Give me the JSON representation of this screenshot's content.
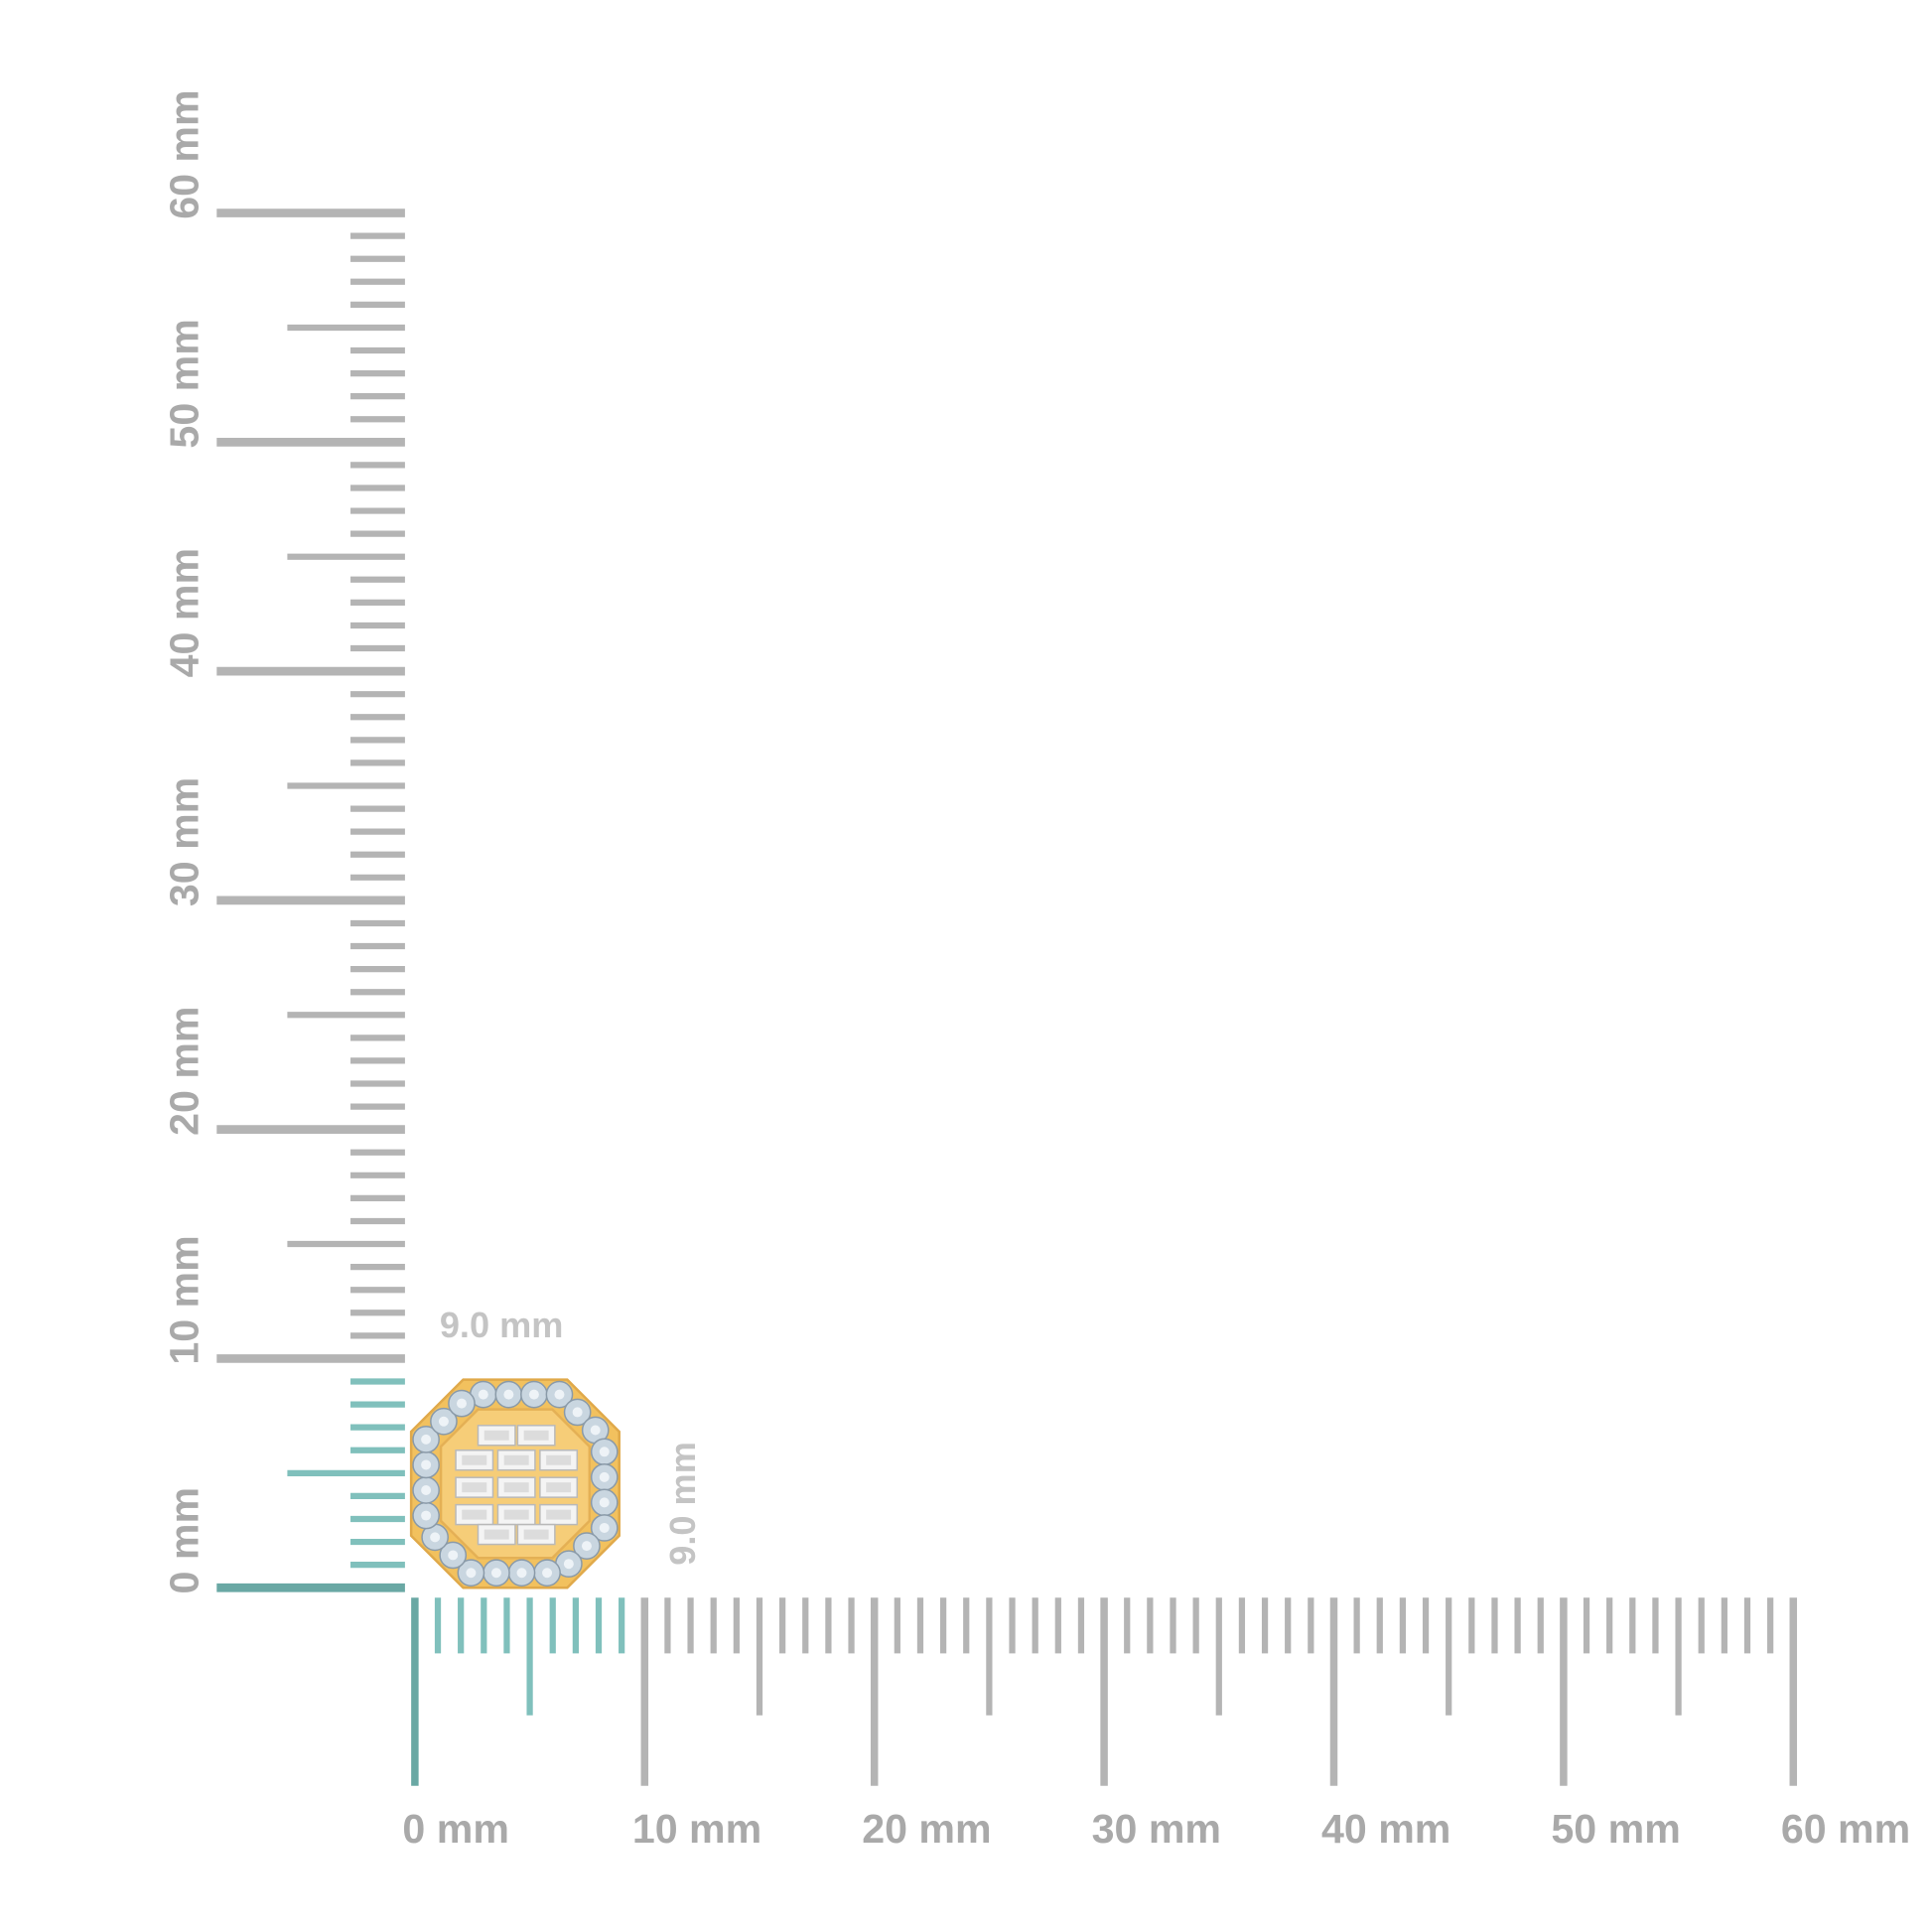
{
  "vertical_ruler": {
    "labels": [
      "0 mm",
      "10 mm",
      "20 mm",
      "30 mm",
      "40 mm",
      "50 mm",
      "60 mm"
    ],
    "range_mm": [
      0,
      60
    ],
    "highlight_mm": 9
  },
  "horizontal_ruler": {
    "labels": [
      "0 mm",
      "10 mm",
      "20 mm",
      "30 mm",
      "40 mm",
      "50 mm",
      "60 mm"
    ],
    "range_mm": [
      0,
      60
    ],
    "highlight_mm": 9
  },
  "dimensions": {
    "width_label": "9.0 mm",
    "height_label": "9.0 mm"
  },
  "colors": {
    "ruler": "#b4b4b4",
    "highlight": "#80c0bc",
    "origin": "#6aa8a4",
    "gold": "#f2c15e",
    "stone": "#c9d6e0"
  },
  "product": {
    "shape": "octagon earring with halo of round stones and baguette center"
  }
}
